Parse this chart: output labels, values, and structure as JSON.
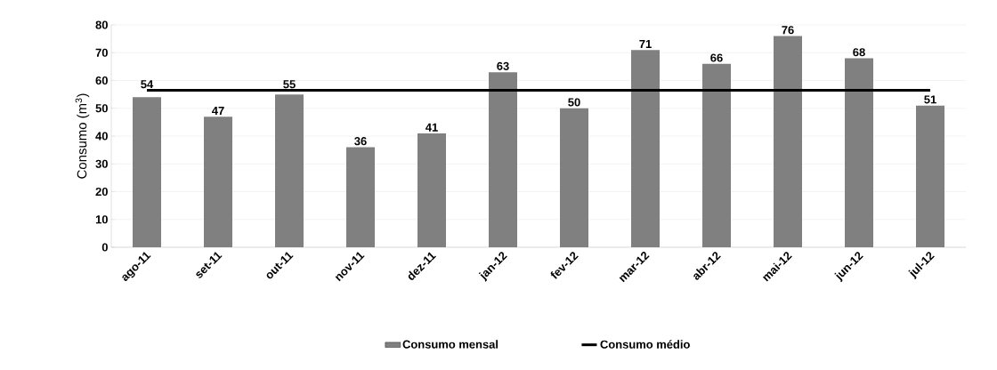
{
  "chart_data": {
    "type": "bar",
    "ylabel": "Consumo (m$^{3}$)",
    "categories": [
      "ago-11",
      "set-11",
      "out-11",
      "nov-11",
      "dez-11",
      "jan-12",
      "fev-12",
      "mar-12",
      "abr-12",
      "mai-12",
      "jun-12",
      "jul-12"
    ],
    "series": [
      {
        "name": "Consumo mensal",
        "color": "#808080",
        "values": [
          54,
          47,
          55,
          36,
          41,
          63,
          50,
          71,
          66,
          76,
          68,
          51
        ],
        "value_labels": [
          "54",
          "47",
          "55",
          "36",
          "41",
          "63",
          "50",
          "71",
          "66",
          "76",
          "68",
          "51"
        ]
      },
      {
        "name": "Consumo médio",
        "type": "line",
        "color": "#000000",
        "values": [
          56.5,
          56.5,
          56.5,
          56.5,
          56.5,
          56.5,
          56.5,
          56.5,
          56.5,
          56.5,
          56.5,
          56.5
        ]
      }
    ],
    "ylim": [
      0,
      80
    ],
    "yticks": [
      0,
      10,
      20,
      30,
      40,
      50,
      60,
      70,
      80
    ],
    "grid": "y",
    "legend": "bottom"
  }
}
